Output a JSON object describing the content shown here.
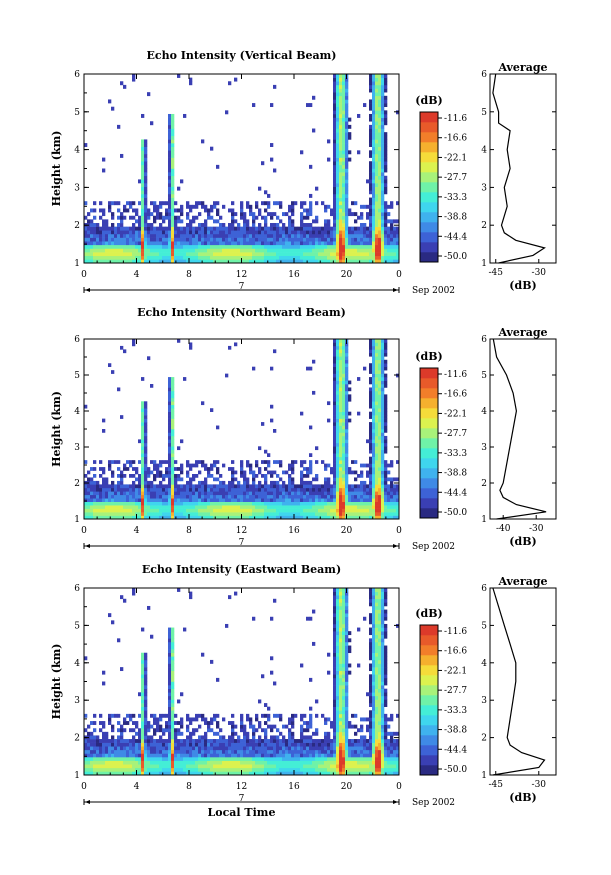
{
  "colors": {
    "colormap": [
      "#2a2a82",
      "#3a3fb3",
      "#3d62d6",
      "#3f8ae6",
      "#3fb2ee",
      "#3fd6ee",
      "#44eed6",
      "#6ff2a8",
      "#a8f27a",
      "#dcf24f",
      "#f5dc3a",
      "#f5b02e",
      "#f27e2a",
      "#e85a2a",
      "#dc3a2a"
    ]
  },
  "shared": {
    "date_label": "Sep 2002",
    "day_label": "7",
    "xlabel_bottom": "Local Time",
    "cb_unit": "(dB)",
    "cb_ticks": [
      "-11.6",
      "-16.6",
      "-22.1",
      "-27.7",
      "-33.3",
      "-38.8",
      "-44.4",
      "-50.0"
    ]
  },
  "chart_data": [
    {
      "type": "heatmap",
      "title": "Echo Intensity (Vertical Beam)",
      "ylabel": "Height (km)",
      "xlabel": "",
      "x_ticks": [
        "0",
        "4",
        "8",
        "12",
        "16",
        "20",
        "0"
      ],
      "y_ticks": [
        "1",
        "2",
        "3",
        "4",
        "5",
        "6"
      ],
      "xlim": [
        0,
        24
      ],
      "ylim": [
        1,
        6
      ],
      "events_local_time": [
        4.5,
        6.7,
        19.6,
        22.4
      ],
      "colorbar": {
        "unit": "(dB)",
        "range": [
          -50.0,
          -11.6
        ]
      },
      "profile": {
        "title": "Average",
        "xlabel": "(dB)",
        "x_ticks": [
          "-45",
          "-30"
        ],
        "y_ticks": [
          "1",
          "2",
          "3",
          "4",
          "5",
          "6"
        ],
        "height_km": [
          1.0,
          1.2,
          1.4,
          1.6,
          1.8,
          2.0,
          2.5,
          3.0,
          3.5,
          4.0,
          4.5,
          4.7,
          5.0,
          5.5,
          6.0
        ],
        "db": [
          -44,
          -32,
          -28,
          -38,
          -42,
          -43,
          -41,
          -42,
          -40,
          -41,
          -40,
          -44,
          -44,
          -46,
          -45
        ]
      }
    },
    {
      "type": "heatmap",
      "title": "Echo Intensity (Northward Beam)",
      "ylabel": "Height (km)",
      "xlabel": "",
      "x_ticks": [
        "0",
        "4",
        "8",
        "12",
        "16",
        "20",
        "0"
      ],
      "y_ticks": [
        "1",
        "2",
        "3",
        "4",
        "5",
        "6"
      ],
      "xlim": [
        0,
        24
      ],
      "ylim": [
        1,
        6
      ],
      "events_local_time": [
        4.5,
        6.7,
        19.6,
        22.4
      ],
      "colorbar": {
        "unit": "(dB)",
        "range": [
          -50.0,
          -11.6
        ]
      },
      "profile": {
        "title": "Average",
        "xlabel": "(dB)",
        "x_ticks": [
          "-40",
          "-30"
        ],
        "y_ticks": [
          "1",
          "2",
          "3",
          "4",
          "5",
          "6"
        ],
        "height_km": [
          1.0,
          1.2,
          1.4,
          1.6,
          1.8,
          2.0,
          2.5,
          3.0,
          3.5,
          4.0,
          4.5,
          5.0,
          5.5,
          6.0
        ],
        "db": [
          -42,
          -27,
          -36,
          -40,
          -41,
          -40,
          -39,
          -38,
          -37,
          -36,
          -37,
          -39,
          -42,
          -43
        ]
      }
    },
    {
      "type": "heatmap",
      "title": "Echo Intensity (Eastward Beam)",
      "ylabel": "Height (km)",
      "xlabel": "Local Time",
      "x_ticks": [
        "0",
        "4",
        "8",
        "12",
        "16",
        "20",
        "0"
      ],
      "y_ticks": [
        "1",
        "2",
        "3",
        "4",
        "5",
        "6"
      ],
      "xlim": [
        0,
        24
      ],
      "ylim": [
        1,
        6
      ],
      "events_local_time": [
        4.5,
        6.7,
        19.6,
        22.4
      ],
      "colorbar": {
        "unit": "(dB)",
        "range": [
          -50.0,
          -11.6
        ]
      },
      "profile": {
        "title": "Average",
        "xlabel": "(dB)",
        "x_ticks": [
          "-45",
          "-30"
        ],
        "y_ticks": [
          "1",
          "2",
          "3",
          "4",
          "5",
          "6"
        ],
        "height_km": [
          1.0,
          1.2,
          1.4,
          1.6,
          1.8,
          2.0,
          2.5,
          3.0,
          3.5,
          4.0,
          4.5,
          5.0,
          5.5,
          6.0
        ],
        "db": [
          -46,
          -30,
          -28,
          -36,
          -40,
          -41,
          -40,
          -39,
          -38,
          -38,
          -40,
          -42,
          -44,
          -46
        ]
      }
    }
  ]
}
